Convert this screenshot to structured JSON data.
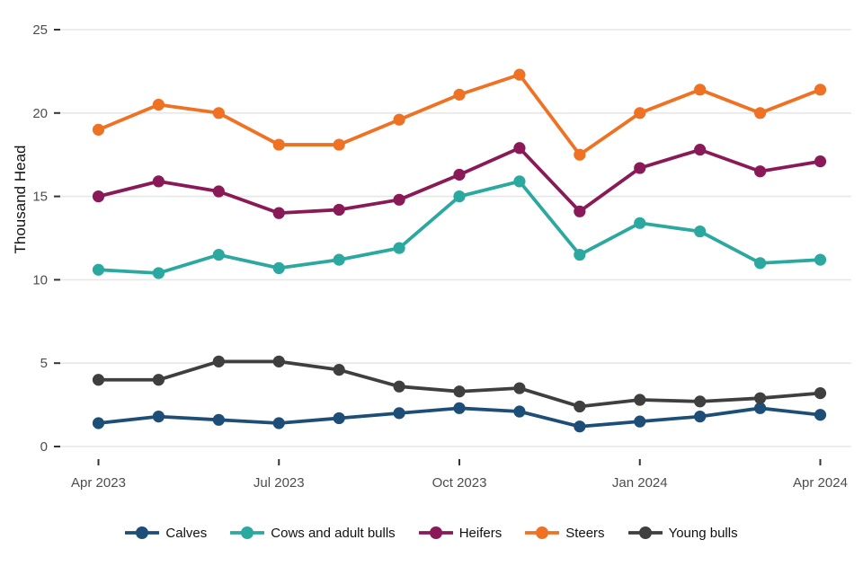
{
  "chart_data": {
    "type": "line",
    "title": "",
    "xlabel": "",
    "ylabel": "Thousand Head",
    "x": [
      "Apr 2023",
      "May 2023",
      "Jun 2023",
      "Jul 2023",
      "Aug 2023",
      "Sep 2023",
      "Oct 2023",
      "Nov 2023",
      "Dec 2023",
      "Jan 2024",
      "Feb 2024",
      "Mar 2024",
      "Apr 2024"
    ],
    "x_tick_indices": [
      0,
      3,
      6,
      9,
      12
    ],
    "x_tick_labels": [
      "Apr 2023",
      "Jul 2023",
      "Oct 2023",
      "Jan 2024",
      "Apr 2024"
    ],
    "y_ticks": [
      0,
      5,
      10,
      15,
      20,
      25
    ],
    "ylim": [
      0,
      25
    ],
    "grid": "horizontal-only",
    "legend_position": "bottom",
    "series": [
      {
        "name": "Calves",
        "color": "#1d4e78",
        "values": [
          1.4,
          1.8,
          1.6,
          1.4,
          1.7,
          2.0,
          2.3,
          2.1,
          1.2,
          1.5,
          1.8,
          2.3,
          1.9
        ]
      },
      {
        "name": "Cows and adult bulls",
        "color": "#2ba8a0",
        "values": [
          10.6,
          10.4,
          11.5,
          10.7,
          11.2,
          11.9,
          15.0,
          15.9,
          11.5,
          13.4,
          12.9,
          11.0,
          11.2
        ]
      },
      {
        "name": "Heifers",
        "color": "#8a1a57",
        "values": [
          15.0,
          15.9,
          15.3,
          14.0,
          14.2,
          14.8,
          16.3,
          17.9,
          14.1,
          16.7,
          17.8,
          16.5,
          17.1
        ]
      },
      {
        "name": "Steers",
        "color": "#ef7123",
        "values": [
          19.0,
          20.5,
          20.0,
          18.1,
          18.1,
          19.6,
          21.1,
          22.3,
          17.5,
          20.0,
          21.4,
          20.0,
          21.4
        ]
      },
      {
        "name": "Young bulls",
        "color": "#3f3f3f",
        "values": [
          4.0,
          4.0,
          5.1,
          5.1,
          4.6,
          3.6,
          3.3,
          3.5,
          2.4,
          2.8,
          2.7,
          2.9,
          3.2
        ]
      }
    ]
  },
  "colors": {
    "background": "#ffffff",
    "gridline": "#e7e7e7",
    "tick_mark": "#333333",
    "tick_label": "#4d4d4d",
    "axis_label": "#111111",
    "legend_text": "#111111"
  }
}
